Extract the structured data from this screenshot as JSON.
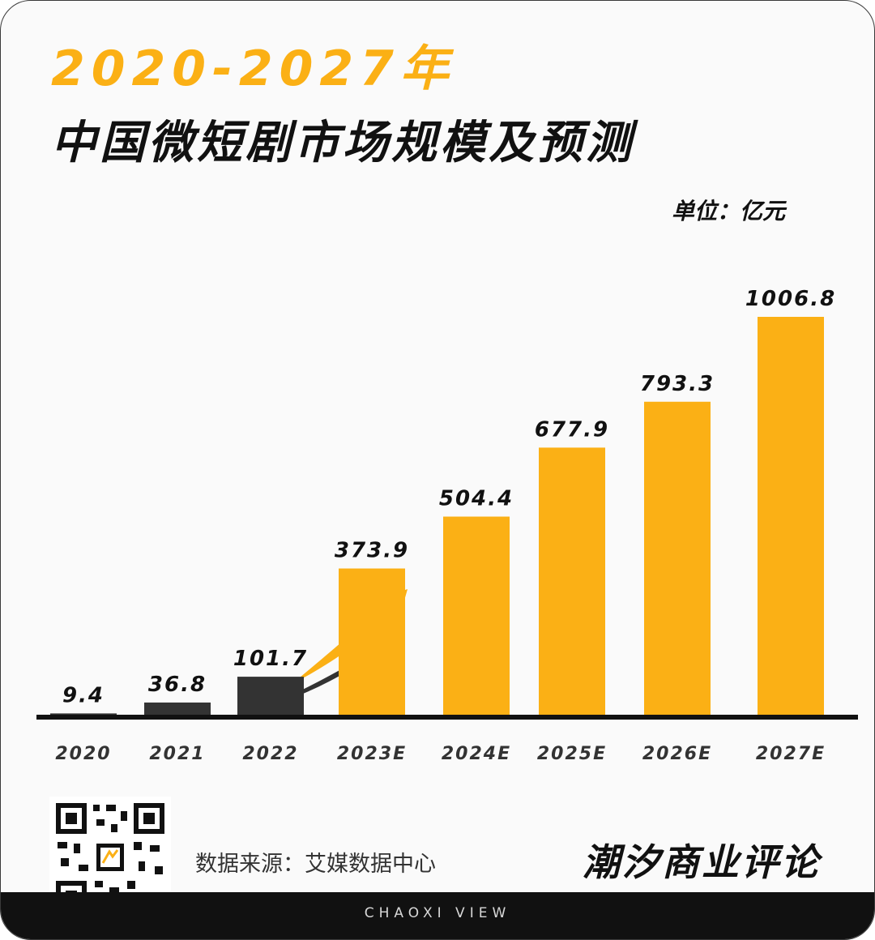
{
  "title_line1": "2020-2027年",
  "title_line2": "中国微短剧市场规模及预测",
  "unit": "单位：亿元",
  "source": "数据来源：艾媒数据中心",
  "brand": "潮汐商业评论",
  "footer": "CHAOXI VIEW",
  "qr_icon": "qr-code-icon",
  "arrow_icon": "rising-arrow-icon",
  "colors": {
    "actual": "#333333",
    "forecast": "#fbb015",
    "axis": "#111111",
    "accent": "#fbb015"
  },
  "chart_data": {
    "type": "bar",
    "title": "中国微短剧市场规模及预测",
    "xlabel": "",
    "ylabel": "",
    "unit": "亿元",
    "categories": [
      "2020",
      "2021",
      "2022",
      "2023E",
      "2024E",
      "2025E",
      "2026E",
      "2027E"
    ],
    "values": [
      9.4,
      36.8,
      101.7,
      373.9,
      504.4,
      677.9,
      793.3,
      1006.8
    ],
    "value_labels": [
      "9.4",
      "36.8",
      "101.7",
      "373.9",
      "504.4",
      "677.9",
      "793.3",
      "1006.8"
    ],
    "forecast": [
      false,
      false,
      false,
      true,
      true,
      true,
      true,
      true
    ],
    "ylim": [
      0,
      1006.8
    ],
    "grid": false,
    "legend": "none"
  }
}
